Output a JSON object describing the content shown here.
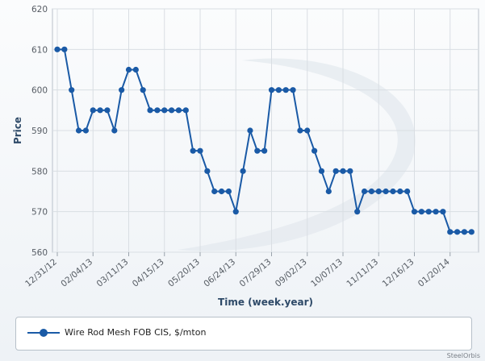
{
  "chart_data": {
    "type": "line",
    "ylabel": "Price",
    "xlabel": "Time (week.year)",
    "ylim": [
      560,
      620
    ],
    "yticks": [
      560,
      570,
      580,
      590,
      600,
      610,
      620
    ],
    "xtick_labels": [
      "12/31/12",
      "02/04/13",
      "03/11/13",
      "04/15/13",
      "05/20/13",
      "06/24/13",
      "07/29/13",
      "09/02/13",
      "10/07/13",
      "11/11/13",
      "12/16/13",
      "01/20/14"
    ],
    "xtick_every": 5,
    "grid": true,
    "legend_position": "bottom",
    "colors": {
      "series": "#1a5aa6",
      "grid": "#d9dee3"
    },
    "series": [
      {
        "name": "Wire Rod Mesh FOB CIS, $/mton",
        "values": [
          610,
          610,
          600,
          590,
          590,
          595,
          595,
          595,
          590,
          600,
          605,
          605,
          600,
          595,
          595,
          595,
          595,
          595,
          595,
          585,
          585,
          580,
          575,
          575,
          575,
          570,
          580,
          590,
          585,
          585,
          600,
          600,
          600,
          600,
          590,
          590,
          585,
          580,
          575,
          580,
          580,
          580,
          570,
          575,
          575,
          575,
          575,
          575,
          575,
          575,
          570,
          570,
          570,
          570,
          570,
          565,
          565,
          565,
          565
        ]
      }
    ]
  },
  "legend": {
    "label": "Wire Rod Mesh FOB CIS, $/mton"
  },
  "credit": "SteelOrbis"
}
